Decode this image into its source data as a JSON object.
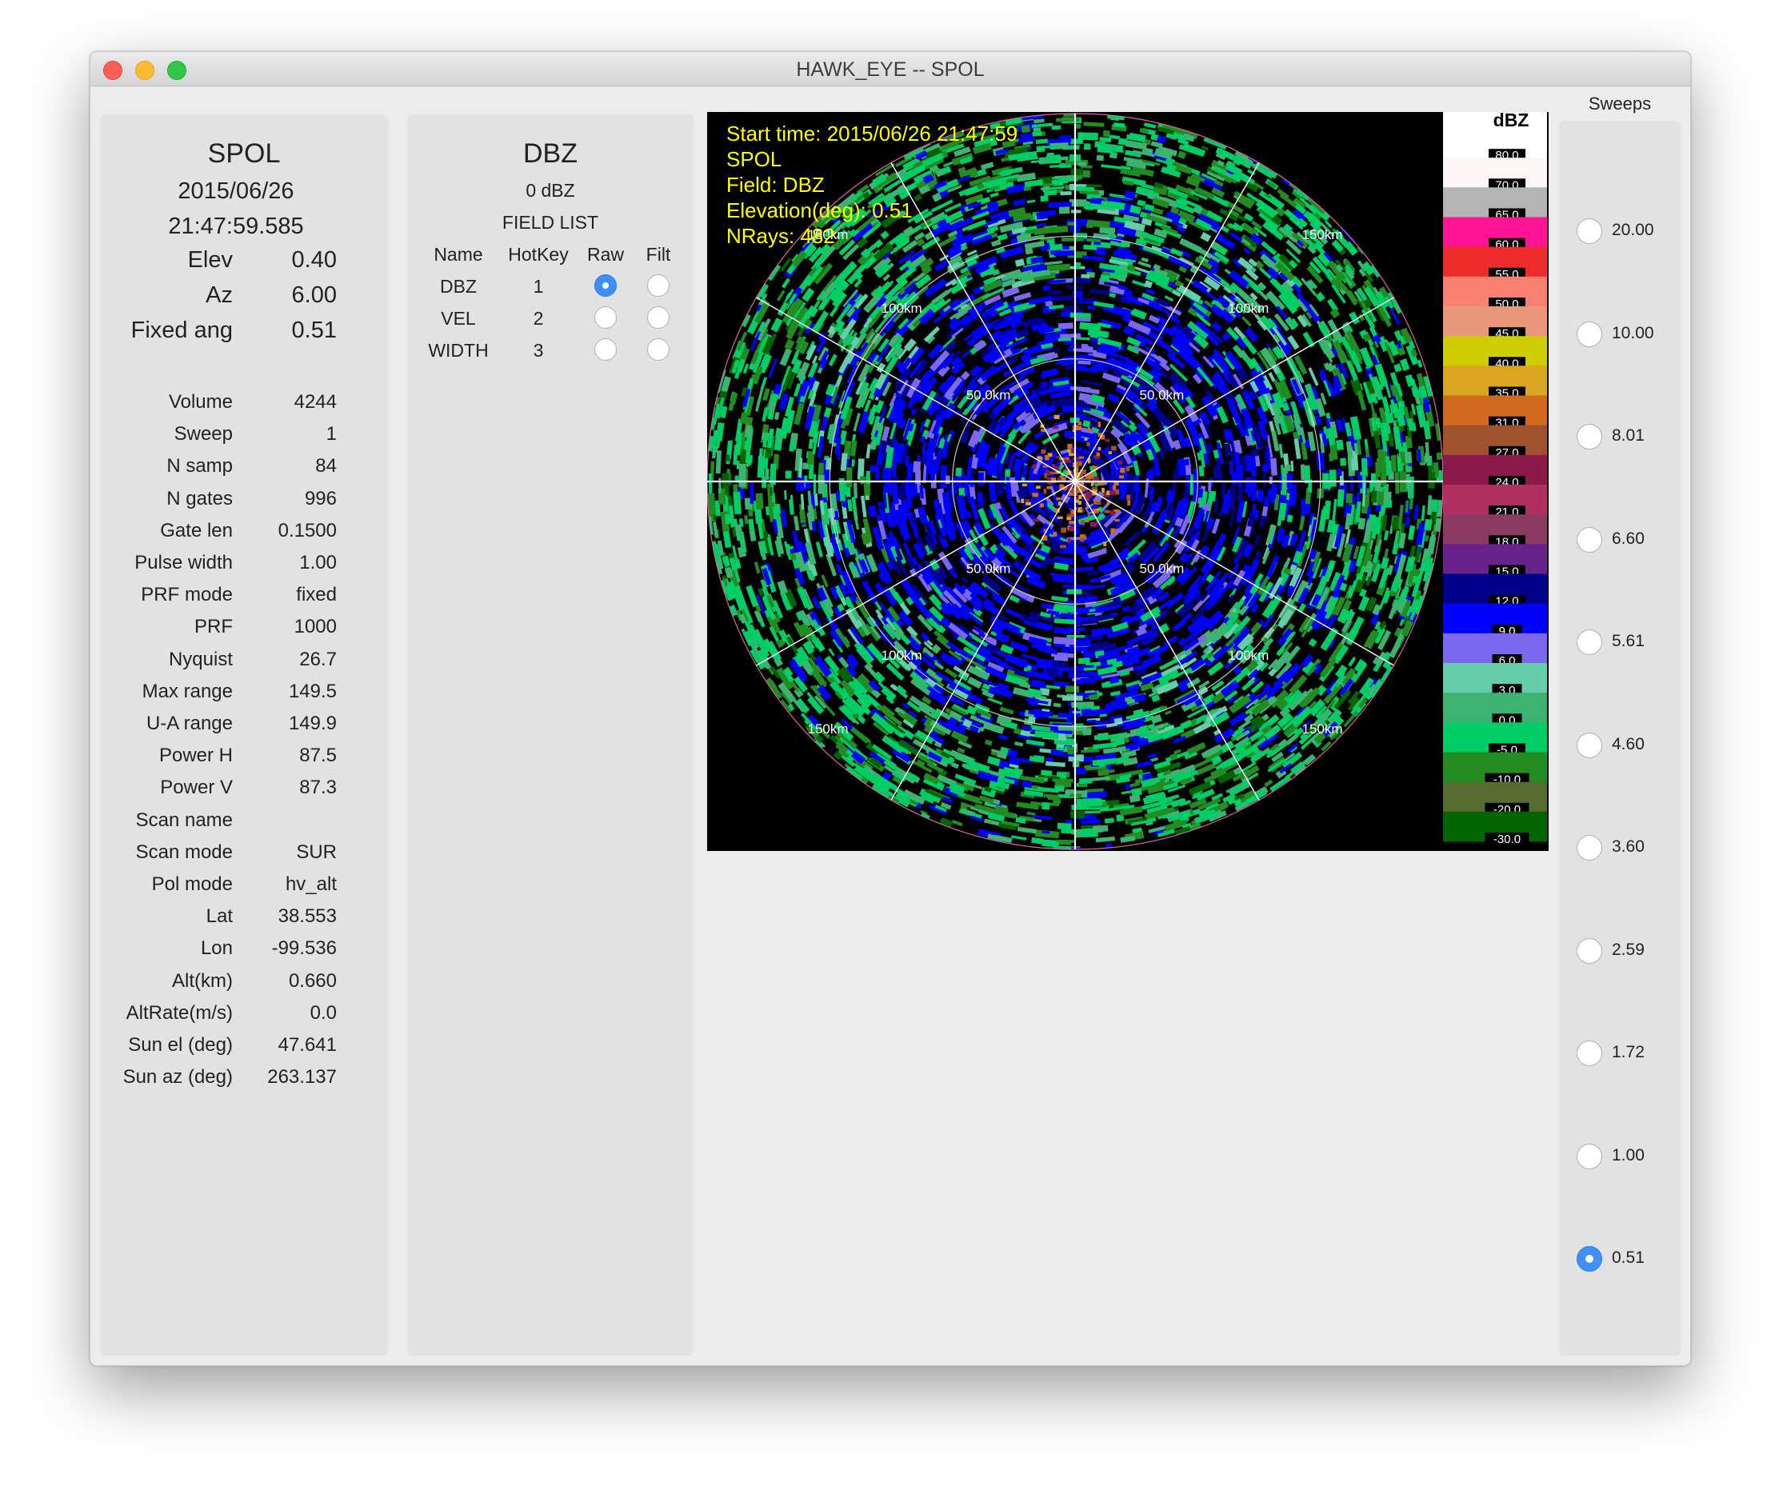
{
  "window": {
    "title": "HAWK_EYE -- SPOL"
  },
  "status": {
    "radar": "SPOL",
    "date": "2015/06/26",
    "time": "21:47:59.585",
    "big_rows": [
      {
        "label": "Elev",
        "value": "0.40"
      },
      {
        "label": "Az",
        "value": "6.00"
      },
      {
        "label": "Fixed ang",
        "value": "0.51"
      }
    ],
    "rows": [
      {
        "label": "Volume",
        "value": "4244"
      },
      {
        "label": "Sweep",
        "value": "1"
      },
      {
        "label": "N samp",
        "value": "84"
      },
      {
        "label": "N gates",
        "value": "996"
      },
      {
        "label": "Gate len",
        "value": "0.1500"
      },
      {
        "label": "Pulse width",
        "value": "1.00"
      },
      {
        "label": "PRF mode",
        "value": "fixed"
      },
      {
        "label": "PRF",
        "value": "1000"
      },
      {
        "label": "Nyquist",
        "value": "26.7"
      },
      {
        "label": "Max range",
        "value": "149.5"
      },
      {
        "label": "U-A range",
        "value": "149.9"
      },
      {
        "label": "Power H",
        "value": "87.5"
      },
      {
        "label": "Power V",
        "value": "87.3"
      },
      {
        "label": "Scan name",
        "value": ""
      },
      {
        "label": "Scan mode",
        "value": "SUR"
      },
      {
        "label": "Pol mode",
        "value": "hv_alt"
      },
      {
        "label": "Lat",
        "value": "38.553"
      },
      {
        "label": "Lon",
        "value": "-99.536"
      },
      {
        "label": "Alt(km)",
        "value": "0.660"
      },
      {
        "label": "AltRate(m/s)",
        "value": "0.0"
      },
      {
        "label": "Sun el (deg)",
        "value": "47.641"
      },
      {
        "label": "Sun az (deg)",
        "value": "263.137"
      }
    ]
  },
  "fields": {
    "title": "DBZ",
    "value": "0 dBZ",
    "list_label": "FIELD LIST",
    "headers": [
      "Name",
      "HotKey",
      "Raw",
      "Filt"
    ],
    "items": [
      {
        "name": "DBZ",
        "hotkey": "1",
        "raw_selected": true,
        "filt_selected": false
      },
      {
        "name": "VEL",
        "hotkey": "2",
        "raw_selected": false,
        "filt_selected": false
      },
      {
        "name": "WIDTH",
        "hotkey": "3",
        "raw_selected": false,
        "filt_selected": false
      }
    ]
  },
  "ppi": {
    "overlay": [
      "Start time: 2015/06/26 21:47:59",
      "SPOL",
      "Field: DBZ",
      "Elevation(deg): 0.51",
      "NRays: 482"
    ],
    "overlay_color": "#ffff00",
    "range_labels": {
      "r50": "50.0km",
      "r100": "100km",
      "r150": "150km"
    },
    "colorscale_title": "dBZ",
    "colorscale": [
      {
        "label": "80.0",
        "color": "#ffffff"
      },
      {
        "label": "70.0",
        "color": "#fdf6f6"
      },
      {
        "label": "65.0",
        "color": "#b4b4b4"
      },
      {
        "label": "60.0",
        "color": "#ff1493"
      },
      {
        "label": "55.0",
        "color": "#ee2c2c"
      },
      {
        "label": "50.0",
        "color": "#fa8072"
      },
      {
        "label": "45.0",
        "color": "#e9967a"
      },
      {
        "label": "40.0",
        "color": "#cdcd00"
      },
      {
        "label": "35.0",
        "color": "#daa520"
      },
      {
        "label": "31.0",
        "color": "#d2691e"
      },
      {
        "label": "27.0",
        "color": "#a0522d"
      },
      {
        "label": "24.0",
        "color": "#8b1a4a"
      },
      {
        "label": "21.0",
        "color": "#b03060"
      },
      {
        "label": "18.0",
        "color": "#8b3a62"
      },
      {
        "label": "15.0",
        "color": "#68228b"
      },
      {
        "label": "12.0",
        "color": "#00008b"
      },
      {
        "label": "9.0",
        "color": "#0000ff"
      },
      {
        "label": "6.0",
        "color": "#7b68ee"
      },
      {
        "label": "3.0",
        "color": "#66cdaa"
      },
      {
        "label": "0.0",
        "color": "#3cb371"
      },
      {
        "label": "-5.0",
        "color": "#00cd66"
      },
      {
        "label": "-10.0",
        "color": "#228b22"
      },
      {
        "label": "-20.0",
        "color": "#556b2f"
      },
      {
        "label": "-30.0",
        "color": "#006400"
      }
    ],
    "echo_colors": [
      "#006400",
      "#228b22",
      "#00cd66",
      "#3cb371",
      "#66cdaa",
      "#7b68ee",
      "#0000ff",
      "#00008b"
    ],
    "core_colors": [
      "#d2691e",
      "#daa520",
      "#a0522d",
      "#8b1a4a"
    ]
  },
  "sweeps": {
    "title": "Sweeps",
    "items": [
      {
        "label": "20.00",
        "selected": false
      },
      {
        "label": "10.00",
        "selected": false
      },
      {
        "label": "8.01",
        "selected": false
      },
      {
        "label": "6.60",
        "selected": false
      },
      {
        "label": "5.61",
        "selected": false
      },
      {
        "label": "4.60",
        "selected": false
      },
      {
        "label": "3.60",
        "selected": false
      },
      {
        "label": "2.59",
        "selected": false
      },
      {
        "label": "1.72",
        "selected": false
      },
      {
        "label": "1.00",
        "selected": false
      },
      {
        "label": "0.51",
        "selected": true
      }
    ],
    "accent": "#3e8ff7"
  }
}
